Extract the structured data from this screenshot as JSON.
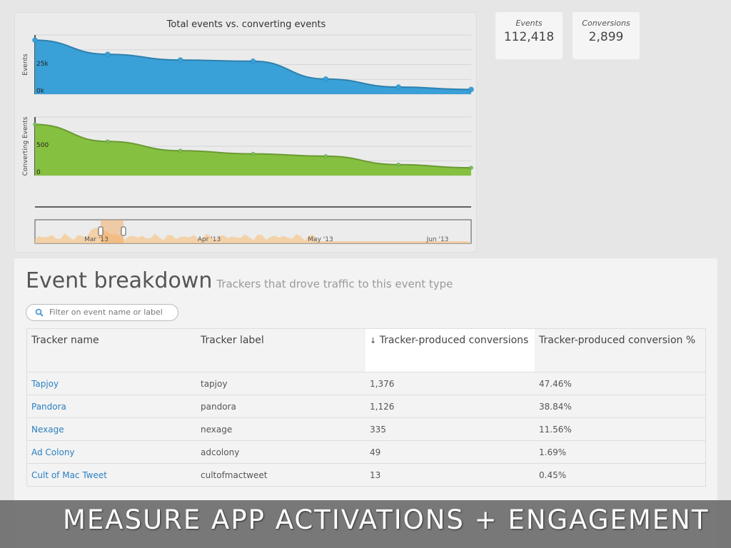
{
  "chart": {
    "title": "Total events vs. converting events"
  },
  "chart_data": [
    {
      "type": "area",
      "title": "Total events vs. converting events",
      "ylabel": "Events",
      "yticks": [
        "0k",
        "25k"
      ],
      "ylim": [
        0,
        30000
      ],
      "color": "#3aa0d8",
      "x": [
        0,
        1,
        2,
        3,
        4,
        5,
        6
      ],
      "values": [
        27400,
        20200,
        17300,
        16700,
        7700,
        3600,
        2400
      ]
    },
    {
      "type": "area",
      "ylabel": "Converting Events",
      "yticks": [
        "0",
        "500"
      ],
      "ylim": [
        0,
        900
      ],
      "color": "#86c040",
      "x": [
        0,
        1,
        2,
        3,
        4,
        5,
        6
      ],
      "values": [
        786,
        524,
        381,
        333,
        298,
        167,
        119
      ]
    },
    {
      "type": "area",
      "role": "navigator",
      "xticks": [
        "Mar '13",
        "Apr '13",
        "May '13",
        "Jun '13"
      ],
      "color": "#f5cc99"
    }
  ],
  "stats": [
    {
      "label": "Events",
      "value": "112,418"
    },
    {
      "label": "Conversions",
      "value": "2,899"
    }
  ],
  "breakdown": {
    "title": "Event breakdown",
    "subtitle": "Trackers that drove traffic to this event type",
    "filter_placeholder": "Filter on event name or label",
    "columns": [
      "Tracker name",
      "Tracker label",
      "Tracker-produced conversions",
      "Tracker-produced conversion %"
    ],
    "sort_icon": "↓",
    "rows": [
      {
        "name": "Tapjoy",
        "label": "tapjoy",
        "conv": "1,376",
        "pct": "47.46%"
      },
      {
        "name": "Pandora",
        "label": "pandora",
        "conv": "1,126",
        "pct": "38.84%"
      },
      {
        "name": "Nexage",
        "label": "nexage",
        "conv": "335",
        "pct": "11.56%"
      },
      {
        "name": "Ad Colony",
        "label": "adcolony",
        "conv": "49",
        "pct": "1.69%"
      },
      {
        "name": "Cult of Mac Tweet",
        "label": "cultofmactweet",
        "conv": "13",
        "pct": "0.45%"
      }
    ]
  },
  "banner": "MEASURE APP ACTIVATIONS + ENGAGEMENT"
}
